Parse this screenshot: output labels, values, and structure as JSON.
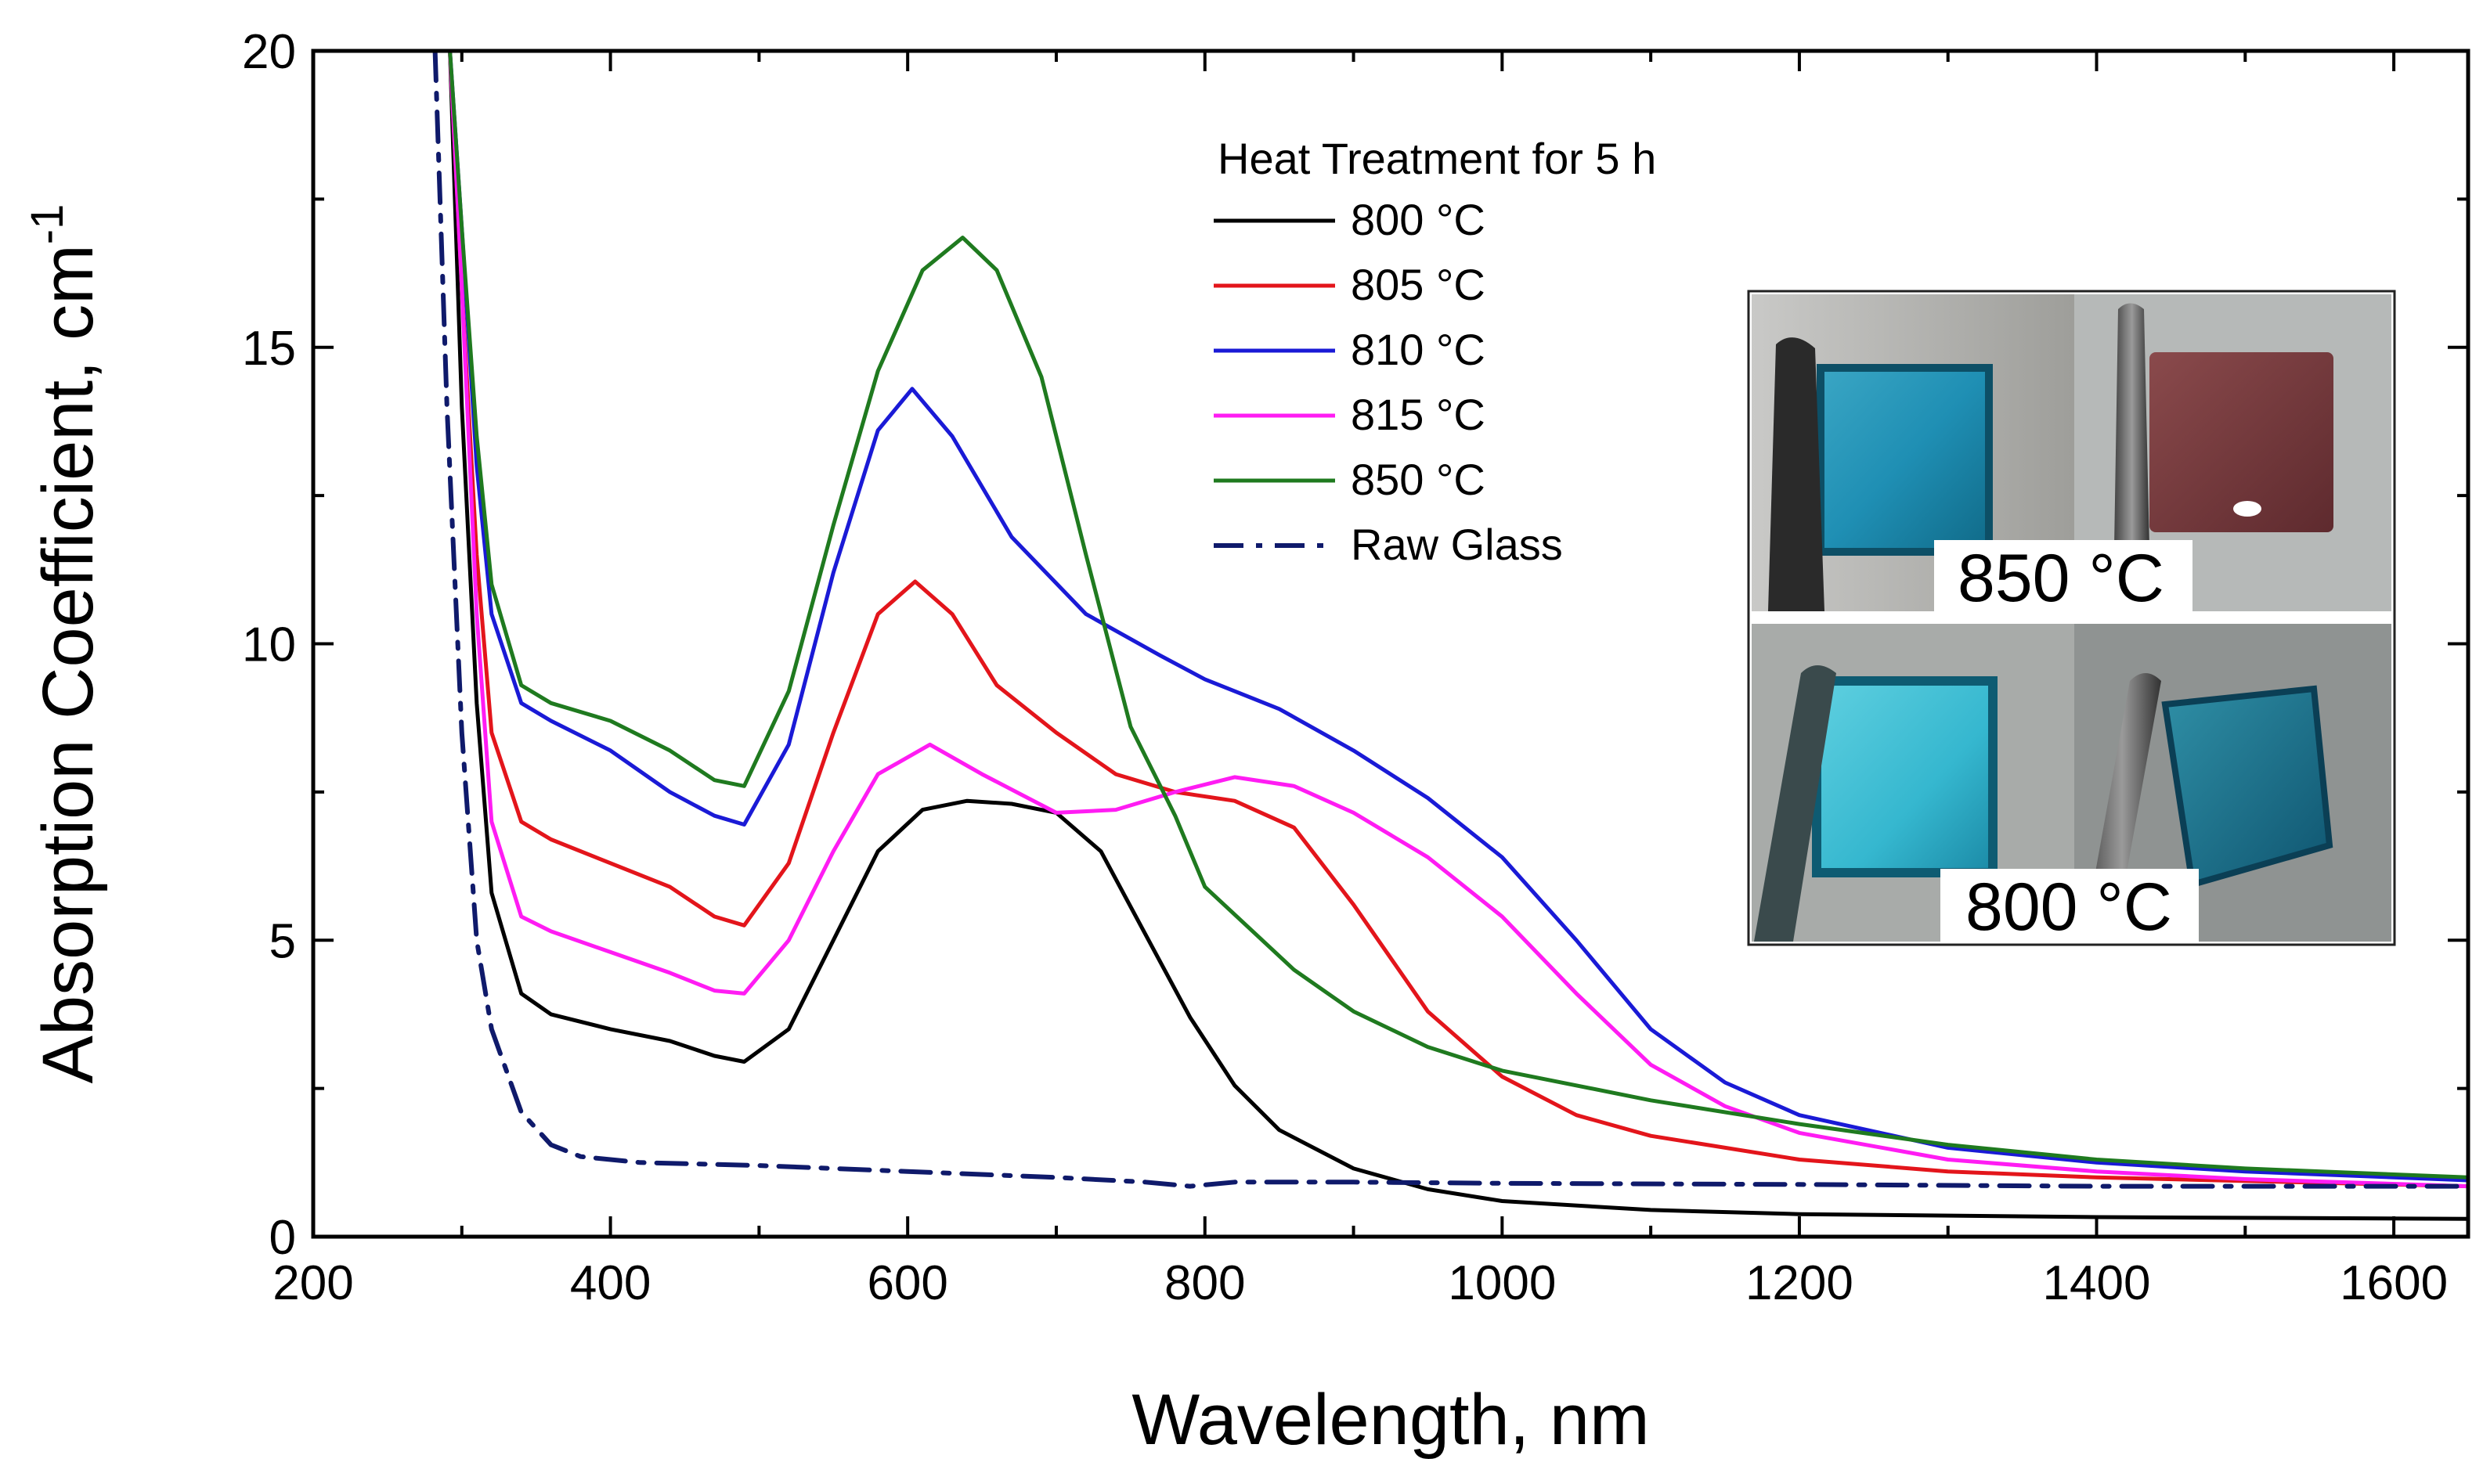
{
  "chart_data": {
    "type": "line",
    "title": "",
    "xlabel": "Wavelength, nm",
    "ylabel": "Absorption Coefficient, cm",
    "ylabel_superscript": "-1",
    "xlim": [
      200,
      1650
    ],
    "ylim": [
      0,
      20
    ],
    "xticks": [
      200,
      400,
      600,
      800,
      1000,
      1200,
      1400,
      1600
    ],
    "yticks": [
      0,
      5,
      10,
      15,
      20
    ],
    "grid": false,
    "legend": {
      "title": "Heat Treatment for 5 h",
      "position": "top-center"
    },
    "series": [
      {
        "name": "800 °C",
        "color": "#000000",
        "dash": "solid",
        "points": [
          [
            292,
            20
          ],
          [
            300,
            14
          ],
          [
            310,
            9
          ],
          [
            320,
            5.8
          ],
          [
            340,
            4.1
          ],
          [
            360,
            3.75
          ],
          [
            400,
            3.5
          ],
          [
            440,
            3.3
          ],
          [
            470,
            3.05
          ],
          [
            490,
            2.95
          ],
          [
            520,
            3.5
          ],
          [
            550,
            5.0
          ],
          [
            580,
            6.5
          ],
          [
            610,
            7.2
          ],
          [
            640,
            7.35
          ],
          [
            670,
            7.3
          ],
          [
            700,
            7.15
          ],
          [
            730,
            6.5
          ],
          [
            760,
            5.1
          ],
          [
            790,
            3.7
          ],
          [
            820,
            2.55
          ],
          [
            850,
            1.8
          ],
          [
            900,
            1.15
          ],
          [
            950,
            0.8
          ],
          [
            1000,
            0.6
          ],
          [
            1100,
            0.45
          ],
          [
            1200,
            0.38
          ],
          [
            1400,
            0.33
          ],
          [
            1650,
            0.3
          ]
        ]
      },
      {
        "name": "805 °C",
        "color": "#e3151b",
        "dash": "solid",
        "points": [
          [
            292,
            20
          ],
          [
            300,
            16
          ],
          [
            310,
            11.5
          ],
          [
            320,
            8.5
          ],
          [
            340,
            7.0
          ],
          [
            360,
            6.7
          ],
          [
            400,
            6.3
          ],
          [
            440,
            5.9
          ],
          [
            470,
            5.4
          ],
          [
            490,
            5.25
          ],
          [
            520,
            6.3
          ],
          [
            550,
            8.5
          ],
          [
            580,
            10.5
          ],
          [
            605,
            11.05
          ],
          [
            630,
            10.5
          ],
          [
            660,
            9.3
          ],
          [
            700,
            8.5
          ],
          [
            740,
            7.8
          ],
          [
            780,
            7.5
          ],
          [
            820,
            7.35
          ],
          [
            860,
            6.9
          ],
          [
            900,
            5.6
          ],
          [
            950,
            3.8
          ],
          [
            1000,
            2.7
          ],
          [
            1050,
            2.05
          ],
          [
            1100,
            1.7
          ],
          [
            1200,
            1.3
          ],
          [
            1300,
            1.1
          ],
          [
            1400,
            1.0
          ],
          [
            1650,
            0.85
          ]
        ]
      },
      {
        "name": "810 °C",
        "color": "#1a1ad6",
        "dash": "solid",
        "points": [
          [
            292,
            20
          ],
          [
            300,
            17
          ],
          [
            310,
            13
          ],
          [
            320,
            10.5
          ],
          [
            340,
            9.0
          ],
          [
            360,
            8.7
          ],
          [
            400,
            8.2
          ],
          [
            440,
            7.5
          ],
          [
            470,
            7.1
          ],
          [
            490,
            6.95
          ],
          [
            520,
            8.3
          ],
          [
            550,
            11.2
          ],
          [
            580,
            13.6
          ],
          [
            603,
            14.3
          ],
          [
            630,
            13.5
          ],
          [
            670,
            11.8
          ],
          [
            720,
            10.5
          ],
          [
            770,
            9.8
          ],
          [
            800,
            9.4
          ],
          [
            850,
            8.9
          ],
          [
            900,
            8.2
          ],
          [
            950,
            7.4
          ],
          [
            1000,
            6.4
          ],
          [
            1050,
            5.0
          ],
          [
            1100,
            3.5
          ],
          [
            1150,
            2.6
          ],
          [
            1200,
            2.05
          ],
          [
            1300,
            1.5
          ],
          [
            1400,
            1.25
          ],
          [
            1500,
            1.1
          ],
          [
            1650,
            0.95
          ]
        ]
      },
      {
        "name": "815 °C",
        "color": "#ff1cf3",
        "dash": "solid",
        "points": [
          [
            292,
            20
          ],
          [
            300,
            16
          ],
          [
            310,
            10.5
          ],
          [
            320,
            7
          ],
          [
            340,
            5.4
          ],
          [
            360,
            5.15
          ],
          [
            400,
            4.8
          ],
          [
            440,
            4.45
          ],
          [
            470,
            4.15
          ],
          [
            490,
            4.1
          ],
          [
            520,
            5.0
          ],
          [
            550,
            6.5
          ],
          [
            580,
            7.8
          ],
          [
            615,
            8.3
          ],
          [
            650,
            7.8
          ],
          [
            700,
            7.15
          ],
          [
            740,
            7.2
          ],
          [
            780,
            7.5
          ],
          [
            820,
            7.75
          ],
          [
            860,
            7.6
          ],
          [
            900,
            7.15
          ],
          [
            950,
            6.4
          ],
          [
            1000,
            5.4
          ],
          [
            1050,
            4.1
          ],
          [
            1100,
            2.9
          ],
          [
            1150,
            2.2
          ],
          [
            1200,
            1.75
          ],
          [
            1300,
            1.3
          ],
          [
            1400,
            1.1
          ],
          [
            1500,
            0.97
          ],
          [
            1650,
            0.85
          ]
        ]
      },
      {
        "name": "850 °C",
        "color": "#1f7a1f",
        "dash": "solid",
        "points": [
          [
            292,
            20
          ],
          [
            300,
            17
          ],
          [
            310,
            13.5
          ],
          [
            320,
            11
          ],
          [
            340,
            9.3
          ],
          [
            360,
            9.0
          ],
          [
            400,
            8.7
          ],
          [
            440,
            8.2
          ],
          [
            470,
            7.7
          ],
          [
            490,
            7.6
          ],
          [
            520,
            9.2
          ],
          [
            550,
            12.0
          ],
          [
            580,
            14.6
          ],
          [
            610,
            16.3
          ],
          [
            637,
            16.85
          ],
          [
            660,
            16.3
          ],
          [
            690,
            14.5
          ],
          [
            720,
            11.5
          ],
          [
            750,
            8.6
          ],
          [
            780,
            7.1
          ],
          [
            800,
            5.9
          ],
          [
            830,
            5.2
          ],
          [
            860,
            4.5
          ],
          [
            900,
            3.8
          ],
          [
            950,
            3.2
          ],
          [
            1000,
            2.8
          ],
          [
            1100,
            2.3
          ],
          [
            1200,
            1.9
          ],
          [
            1300,
            1.55
          ],
          [
            1400,
            1.3
          ],
          [
            1500,
            1.15
          ],
          [
            1650,
            1.0
          ]
        ]
      },
      {
        "name": "Raw Glass",
        "color": "#0f1a6b",
        "dash": "dashdot",
        "points": [
          [
            282,
            20
          ],
          [
            290,
            14
          ],
          [
            300,
            8.5
          ],
          [
            310,
            5
          ],
          [
            320,
            3.5
          ],
          [
            340,
            2.1
          ],
          [
            360,
            1.55
          ],
          [
            380,
            1.35
          ],
          [
            420,
            1.25
          ],
          [
            500,
            1.2
          ],
          [
            600,
            1.1
          ],
          [
            700,
            1.0
          ],
          [
            760,
            0.92
          ],
          [
            790,
            0.85
          ],
          [
            820,
            0.92
          ],
          [
            900,
            0.92
          ],
          [
            1000,
            0.9
          ],
          [
            1200,
            0.88
          ],
          [
            1400,
            0.85
          ],
          [
            1650,
            0.85
          ]
        ]
      }
    ],
    "inset": {
      "labels": [
        "850 °C",
        "800 °C"
      ]
    }
  }
}
